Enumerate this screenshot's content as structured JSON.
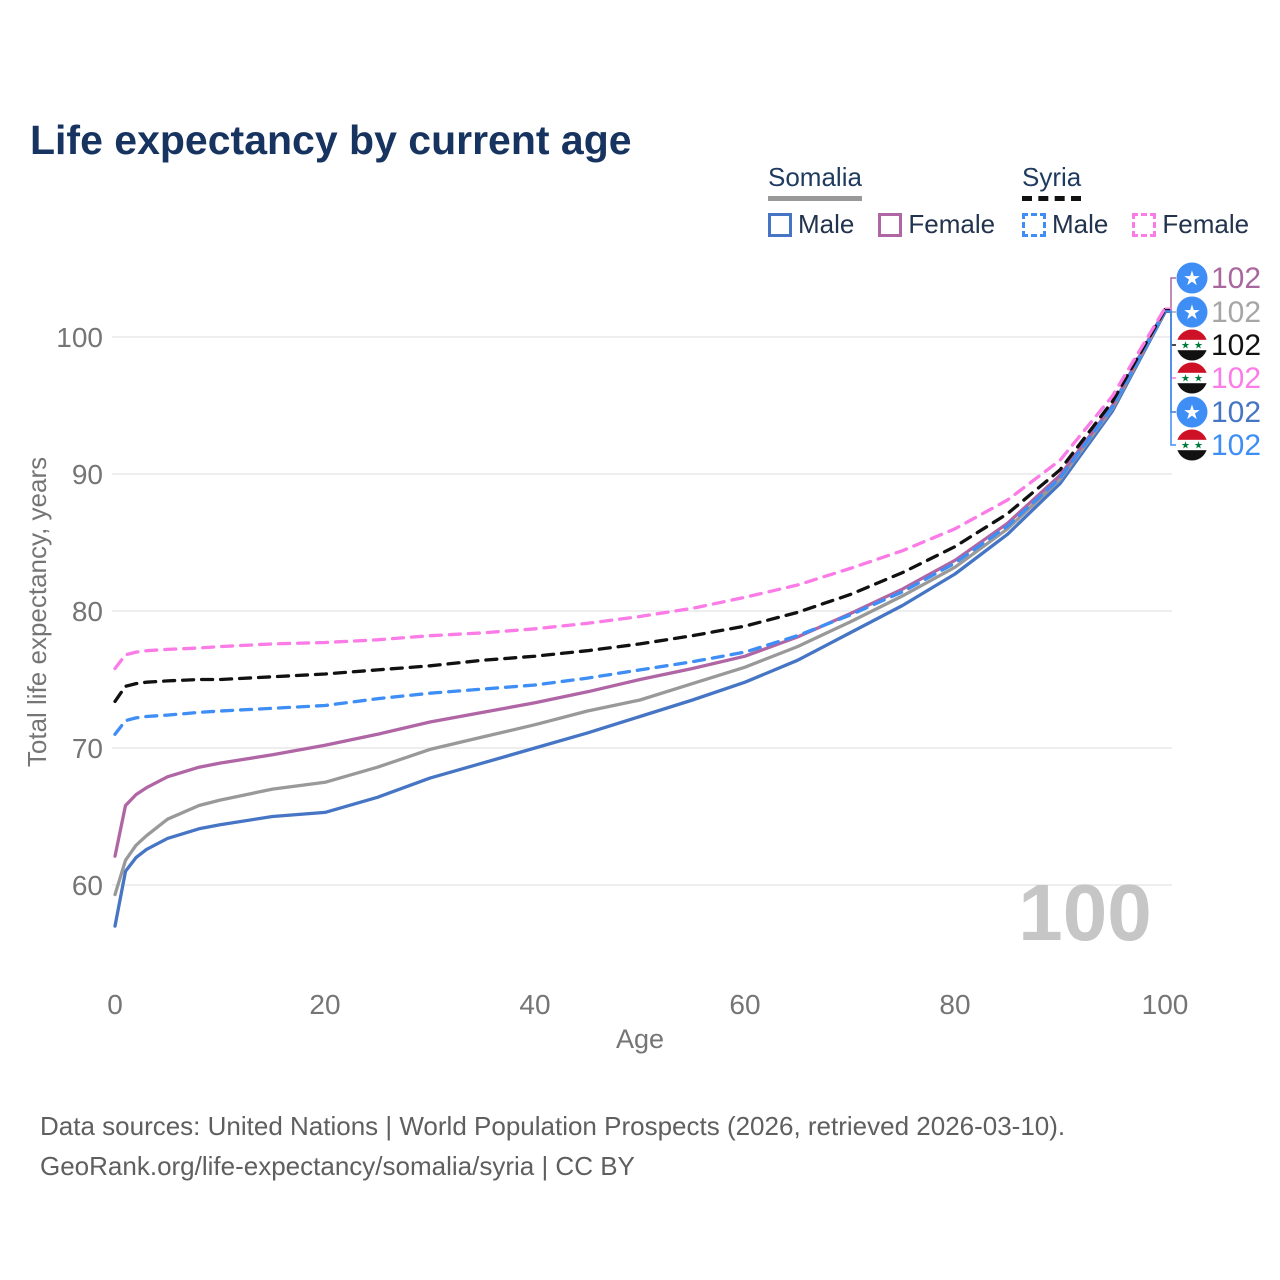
{
  "title": "Life expectancy by current age",
  "legend": {
    "groups": [
      {
        "label": "Somalia",
        "underline_style": "solid",
        "underline_color": "#999999",
        "items": [
          {
            "label": "Male",
            "color": "#4575c4",
            "dashed": false
          },
          {
            "label": "Female",
            "color": "#b065a5",
            "dashed": false
          }
        ]
      },
      {
        "label": "Syria",
        "underline_style": "dashed",
        "underline_color": "#111111",
        "items": [
          {
            "label": "Male",
            "color": "#3e8ef6",
            "dashed": true
          },
          {
            "label": "Female",
            "color": "#fb7be7",
            "dashed": true
          }
        ]
      }
    ]
  },
  "chart_data": {
    "type": "line",
    "title": "Life expectancy by current age",
    "xlabel": "Age",
    "ylabel": "Total life expectancy, years",
    "x_ticks": [
      0,
      20,
      40,
      60,
      80,
      100
    ],
    "y_ticks": [
      60,
      70,
      80,
      90,
      100
    ],
    "xlim": [
      0,
      100
    ],
    "ylim": [
      55,
      104
    ],
    "grid": "horizontal-only",
    "legend_position": "top-right",
    "watermark": "100",
    "x": [
      0,
      1,
      2,
      3,
      5,
      8,
      10,
      15,
      20,
      25,
      30,
      35,
      40,
      45,
      50,
      55,
      60,
      65,
      70,
      75,
      80,
      85,
      90,
      95,
      100
    ],
    "series": [
      {
        "name": "Somalia Male",
        "country": "Somalia",
        "sex": "Male",
        "color": "#4575c4",
        "dashed": false,
        "values": [
          57.0,
          61.0,
          62.0,
          62.6,
          63.4,
          64.1,
          64.4,
          65.0,
          65.3,
          66.4,
          67.8,
          68.9,
          70.0,
          71.1,
          72.3,
          73.5,
          74.8,
          76.4,
          78.4,
          80.4,
          82.7,
          85.6,
          89.3,
          94.6,
          101.8
        ]
      },
      {
        "name": "Somalia Both",
        "country": "Somalia",
        "sex": "Both",
        "color": "#999999",
        "dashed": false,
        "values": [
          59.3,
          61.8,
          62.9,
          63.6,
          64.8,
          65.8,
          66.2,
          67.0,
          67.5,
          68.6,
          69.9,
          70.8,
          71.7,
          72.7,
          73.5,
          74.7,
          75.9,
          77.4,
          79.2,
          81.1,
          83.2,
          86.0,
          89.6,
          94.8,
          101.9
        ]
      },
      {
        "name": "Somalia Female",
        "country": "Somalia",
        "sex": "Female",
        "color": "#b065a5",
        "dashed": false,
        "values": [
          62.1,
          65.8,
          66.6,
          67.1,
          67.9,
          68.6,
          68.9,
          69.5,
          70.2,
          71.0,
          71.9,
          72.6,
          73.3,
          74.1,
          75.0,
          75.8,
          76.7,
          78.1,
          79.8,
          81.6,
          83.7,
          86.4,
          89.9,
          95.0,
          102.0
        ]
      },
      {
        "name": "Syria Male",
        "country": "Syria",
        "sex": "Male",
        "color": "#3e8ef6",
        "dashed": true,
        "values": [
          71.0,
          72.0,
          72.2,
          72.3,
          72.4,
          72.6,
          72.7,
          72.9,
          73.1,
          73.6,
          74.0,
          74.3,
          74.6,
          75.1,
          75.7,
          76.3,
          77.0,
          78.2,
          79.7,
          81.4,
          83.5,
          86.2,
          89.7,
          94.9,
          101.9
        ]
      },
      {
        "name": "Syria Both",
        "country": "Syria",
        "sex": "Both",
        "color": "#111111",
        "dashed": true,
        "values": [
          73.4,
          74.5,
          74.7,
          74.8,
          74.9,
          75.0,
          75.0,
          75.2,
          75.4,
          75.7,
          76.0,
          76.4,
          76.7,
          77.1,
          77.6,
          78.2,
          78.9,
          79.9,
          81.2,
          82.8,
          84.7,
          87.1,
          90.3,
          95.3,
          102.0
        ]
      },
      {
        "name": "Syria Female",
        "country": "Syria",
        "sex": "Female",
        "color": "#fb7be7",
        "dashed": true,
        "values": [
          75.8,
          76.8,
          77.0,
          77.1,
          77.2,
          77.3,
          77.4,
          77.6,
          77.7,
          77.9,
          78.2,
          78.4,
          78.7,
          79.1,
          79.6,
          80.2,
          81.0,
          81.9,
          83.1,
          84.4,
          86.0,
          88.1,
          91.0,
          95.7,
          102.1
        ]
      }
    ],
    "end_labels": [
      {
        "series": "Somalia Female",
        "flag": "somalia",
        "value": "102",
        "color": "#a8679d"
      },
      {
        "series": "Somalia Both",
        "flag": "somalia",
        "value": "102",
        "color": "#a6a6a6"
      },
      {
        "series": "Syria Both",
        "flag": "syria",
        "value": "102",
        "color": "#111111"
      },
      {
        "series": "Syria Female",
        "flag": "syria",
        "value": "102",
        "color": "#fb7be7"
      },
      {
        "series": "Somalia Male",
        "flag": "somalia",
        "value": "102",
        "color": "#4575c4"
      },
      {
        "series": "Syria Male",
        "flag": "syria",
        "value": "102",
        "color": "#3e8ef6"
      }
    ]
  },
  "footer": {
    "line1": "Data sources: United Nations | World Population Prospects (2026, retrieved 2026-03-10).",
    "line2": "GeoRank.org/life-expectancy/somalia/syria | CC BY"
  }
}
